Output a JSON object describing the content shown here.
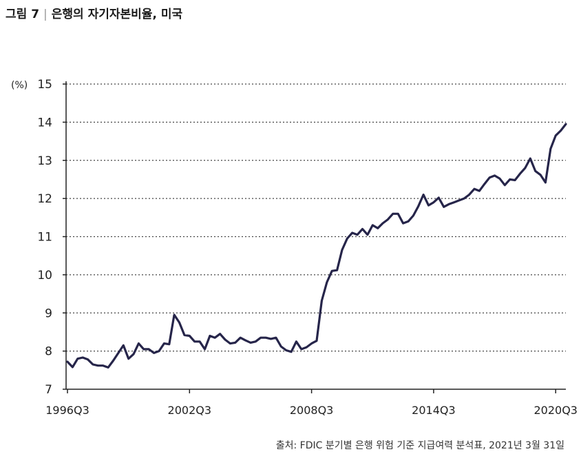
{
  "header": {
    "figure_label": "그림 7",
    "title": "은행의 자기자본비율, 미국"
  },
  "footer": {
    "source": "출처: FDIC 분기별 은행 위험 기준 지급여력 분석표, 2021년 3월 31일"
  },
  "chart_data": {
    "type": "line",
    "title": "은행의 자기자본비율, 미국",
    "xlabel": "",
    "ylabel": "(%)",
    "ylim": [
      7,
      15
    ],
    "yticks": [
      7,
      8,
      9,
      10,
      11,
      12,
      13,
      14,
      15
    ],
    "x_tick_labels": [
      "1996Q3",
      "2002Q3",
      "2008Q3",
      "2014Q3",
      "2020Q3"
    ],
    "x_tick_quarter_index": [
      0,
      24,
      48,
      72,
      96
    ],
    "grid": "horizontal dotted",
    "legend": "none",
    "line_color": "#26254a",
    "series": [
      {
        "values": [
          7.72,
          7.58,
          7.8,
          7.83,
          7.78,
          7.65,
          7.62,
          7.62,
          7.57,
          7.75,
          7.95,
          8.15,
          7.8,
          7.92,
          8.2,
          8.05,
          8.05,
          7.95,
          8.0,
          8.2,
          8.18,
          8.95,
          8.75,
          8.42,
          8.4,
          8.25,
          8.25,
          8.05,
          8.4,
          8.35,
          8.45,
          8.3,
          8.2,
          8.22,
          8.35,
          8.28,
          8.22,
          8.25,
          8.35,
          8.35,
          8.32,
          8.35,
          8.12,
          8.02,
          7.98,
          8.25,
          8.05,
          8.1,
          8.2,
          8.27,
          9.32,
          9.8,
          10.1,
          10.12,
          10.65,
          10.95,
          11.1,
          11.05,
          11.2,
          11.05,
          11.3,
          11.22,
          11.35,
          11.45,
          11.6,
          11.6,
          11.35,
          11.4,
          11.55,
          11.8,
          12.1,
          11.82,
          11.9,
          12.02,
          11.78,
          11.85,
          11.9,
          11.95,
          12.0,
          12.1,
          12.25,
          12.2,
          12.38,
          12.55,
          12.6,
          12.52,
          12.35,
          12.5,
          12.48,
          12.65,
          12.8,
          13.05,
          12.72,
          12.62,
          12.42,
          13.3,
          13.65,
          13.78,
          13.95
        ]
      }
    ]
  }
}
